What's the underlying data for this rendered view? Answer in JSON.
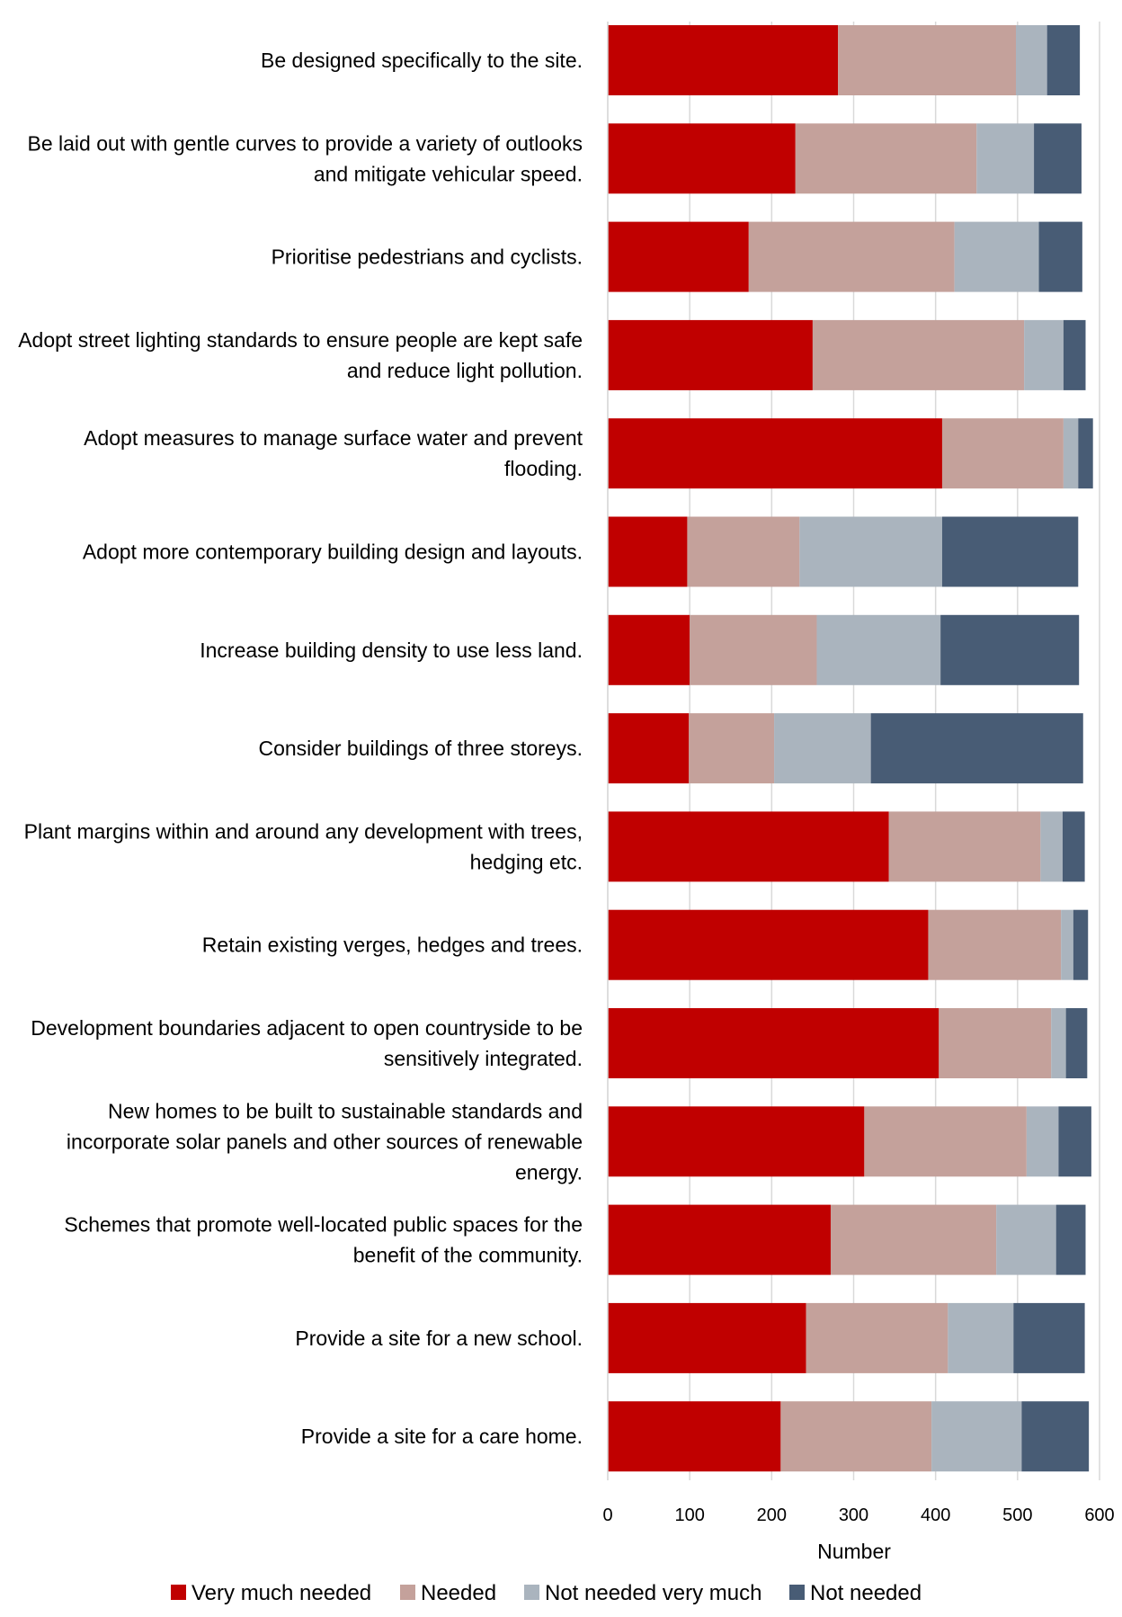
{
  "chart_data": {
    "type": "bar",
    "orientation": "horizontal",
    "stacked": true,
    "categories": [
      [
        "Be designed specifically to the site."
      ],
      [
        "Be laid out with gentle curves to provide a variety of outlooks",
        "and mitigate vehicular speed."
      ],
      [
        "Prioritise pedestrians and cyclists."
      ],
      [
        "Adopt street lighting standards to ensure people are kept safe",
        "and reduce light pollution."
      ],
      [
        "Adopt measures to manage surface water and prevent",
        "flooding."
      ],
      [
        "Adopt more contemporary building design and layouts."
      ],
      [
        "Increase building density to use less land."
      ],
      [
        "Consider buildings of three storeys."
      ],
      [
        "Plant margins within and around any development with trees,",
        "hedging etc."
      ],
      [
        "Retain existing verges, hedges and trees."
      ],
      [
        "Development boundaries adjacent to open countryside to be",
        "sensitively integrated."
      ],
      [
        "New homes to be built to sustainable standards and",
        "incorporate solar panels and other sources of renewable",
        "energy."
      ],
      [
        "Schemes that promote well-located public spaces for the",
        "benefit of the community."
      ],
      [
        "Provide a site for a new school."
      ],
      [
        "Provide a site for a care home."
      ]
    ],
    "series": [
      {
        "name": "Very much needed",
        "color": "#c00000",
        "values": [
          281,
          229,
          172,
          250,
          408,
          97,
          100,
          99,
          343,
          391,
          404,
          313,
          272,
          242,
          211
        ]
      },
      {
        "name": "Needed",
        "color": "#c4a19b",
        "values": [
          217,
          221,
          251,
          258,
          148,
          137,
          155,
          104,
          185,
          162,
          137,
          198,
          202,
          173,
          184
        ]
      },
      {
        "name": "Not needed very much",
        "color": "#aab4be",
        "values": [
          38,
          70,
          103,
          48,
          18,
          174,
          151,
          118,
          27,
          15,
          18,
          39,
          73,
          80,
          110
        ]
      },
      {
        "name": "Not needed",
        "color": "#485c75",
        "values": [
          40,
          58,
          53,
          27,
          18,
          166,
          169,
          259,
          27,
          18,
          26,
          40,
          36,
          87,
          82
        ]
      }
    ],
    "xlabel": "Number",
    "ylabel": "",
    "xlim": [
      0,
      600
    ],
    "xticks": [
      0,
      100,
      200,
      300,
      400,
      500,
      600
    ],
    "grid": "vertical",
    "legend": "bottom"
  }
}
